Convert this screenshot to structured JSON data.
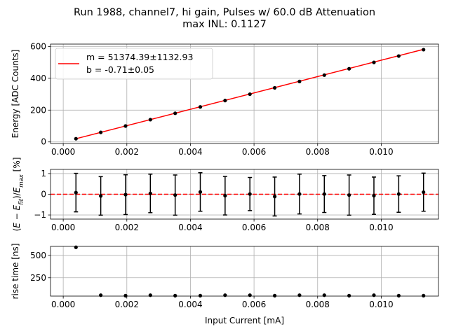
{
  "figure": {
    "title_line1": "Run 1988, channel7, hi gain, Pulses w/ 60.0 dB Attenuation",
    "title_line2": "max INL: 0.1127",
    "xlabel": "Input Current [mA]"
  },
  "chart_data": [
    {
      "type": "line",
      "panel": "energy",
      "ylabel": "Energy [ADC Counts]",
      "xlim": [
        -0.0004,
        0.0118
      ],
      "ylim": [
        -10,
        615
      ],
      "grid": true,
      "legend_position": "upper-left",
      "x_ticks": [
        0.0,
        0.002,
        0.004,
        0.006,
        0.008,
        0.01
      ],
      "x_tick_labels": [
        "0.000",
        "0.002",
        "0.004",
        "0.006",
        "0.008",
        "0.010"
      ],
      "y_ticks": [
        0,
        200,
        400,
        600
      ],
      "y_tick_labels": [
        "0",
        "200",
        "400",
        "600"
      ],
      "series": [
        {
          "kind": "points",
          "color": "#000000",
          "x": [
            0.0004,
            0.00118,
            0.00196,
            0.00274,
            0.00352,
            0.00431,
            0.00509,
            0.00587,
            0.00665,
            0.00743,
            0.00821,
            0.00899,
            0.00977,
            0.01055,
            0.01133
          ],
          "y": [
            20,
            60,
            100,
            140,
            180,
            220,
            260,
            300,
            340,
            380,
            420,
            460,
            500,
            540,
            580
          ]
        },
        {
          "kind": "fit",
          "color": "#ff0000",
          "x": [
            0.0004,
            0.01133
          ],
          "y": [
            20,
            582
          ]
        }
      ],
      "legend": [
        "m = 51374.39±1132.93",
        "b = -0.71±0.05"
      ]
    },
    {
      "type": "scatter",
      "panel": "residuals",
      "ylabel_parts": [
        "(",
        "E",
        " − ",
        "E",
        "fit",
        ")/",
        "E",
        "max",
        " [%]"
      ],
      "xlim": [
        -0.0004,
        0.0118
      ],
      "ylim": [
        -1.2,
        1.2
      ],
      "grid": true,
      "x_ticks": [
        0.0,
        0.002,
        0.004,
        0.006,
        0.008,
        0.01
      ],
      "x_tick_labels": [
        "0.000",
        "0.002",
        "0.004",
        "0.006",
        "0.008",
        "0.010"
      ],
      "y_ticks": [
        -1,
        0,
        1
      ],
      "y_tick_labels": [
        "−1",
        "0",
        "1"
      ],
      "reference_line": {
        "y": 0,
        "color": "#ff0000",
        "style": "dashed"
      },
      "series": [
        {
          "kind": "points_with_error",
          "color": "#000000",
          "x": [
            0.0004,
            0.00118,
            0.00196,
            0.00274,
            0.00352,
            0.00431,
            0.00509,
            0.00587,
            0.00665,
            0.00743,
            0.00821,
            0.00899,
            0.00977,
            0.01055,
            0.01133
          ],
          "y": [
            0.08,
            -0.08,
            -0.02,
            0.04,
            -0.04,
            0.11,
            -0.07,
            0.01,
            -0.11,
            0.01,
            0.01,
            -0.04,
            -0.07,
            0.01,
            0.1
          ],
          "err": [
            0.93,
            0.93,
            0.96,
            0.93,
            0.97,
            0.93,
            0.93,
            0.8,
            0.94,
            0.96,
            0.89,
            0.97,
            0.9,
            0.88,
            0.92
          ]
        }
      ]
    },
    {
      "type": "scatter",
      "panel": "rise_time",
      "ylabel": "rise time [ns]",
      "xlim": [
        -0.0004,
        0.0118
      ],
      "ylim": [
        45,
        600
      ],
      "grid": true,
      "x_ticks": [
        0.0,
        0.002,
        0.004,
        0.006,
        0.008,
        0.01
      ],
      "x_tick_labels": [
        "0.000",
        "0.002",
        "0.004",
        "0.006",
        "0.008",
        "0.010"
      ],
      "y_ticks": [
        250,
        500
      ],
      "y_tick_labels": [
        "250",
        "500"
      ],
      "series": [
        {
          "kind": "points",
          "color": "#000000",
          "x": [
            0.0004,
            0.00118,
            0.00196,
            0.00274,
            0.00352,
            0.00431,
            0.00509,
            0.00587,
            0.00665,
            0.00743,
            0.00821,
            0.00899,
            0.00977,
            0.01055,
            0.01133
          ],
          "y": [
            590,
            55,
            50,
            55,
            50,
            50,
            55,
            55,
            50,
            55,
            55,
            50,
            55,
            50,
            50
          ]
        }
      ]
    }
  ]
}
